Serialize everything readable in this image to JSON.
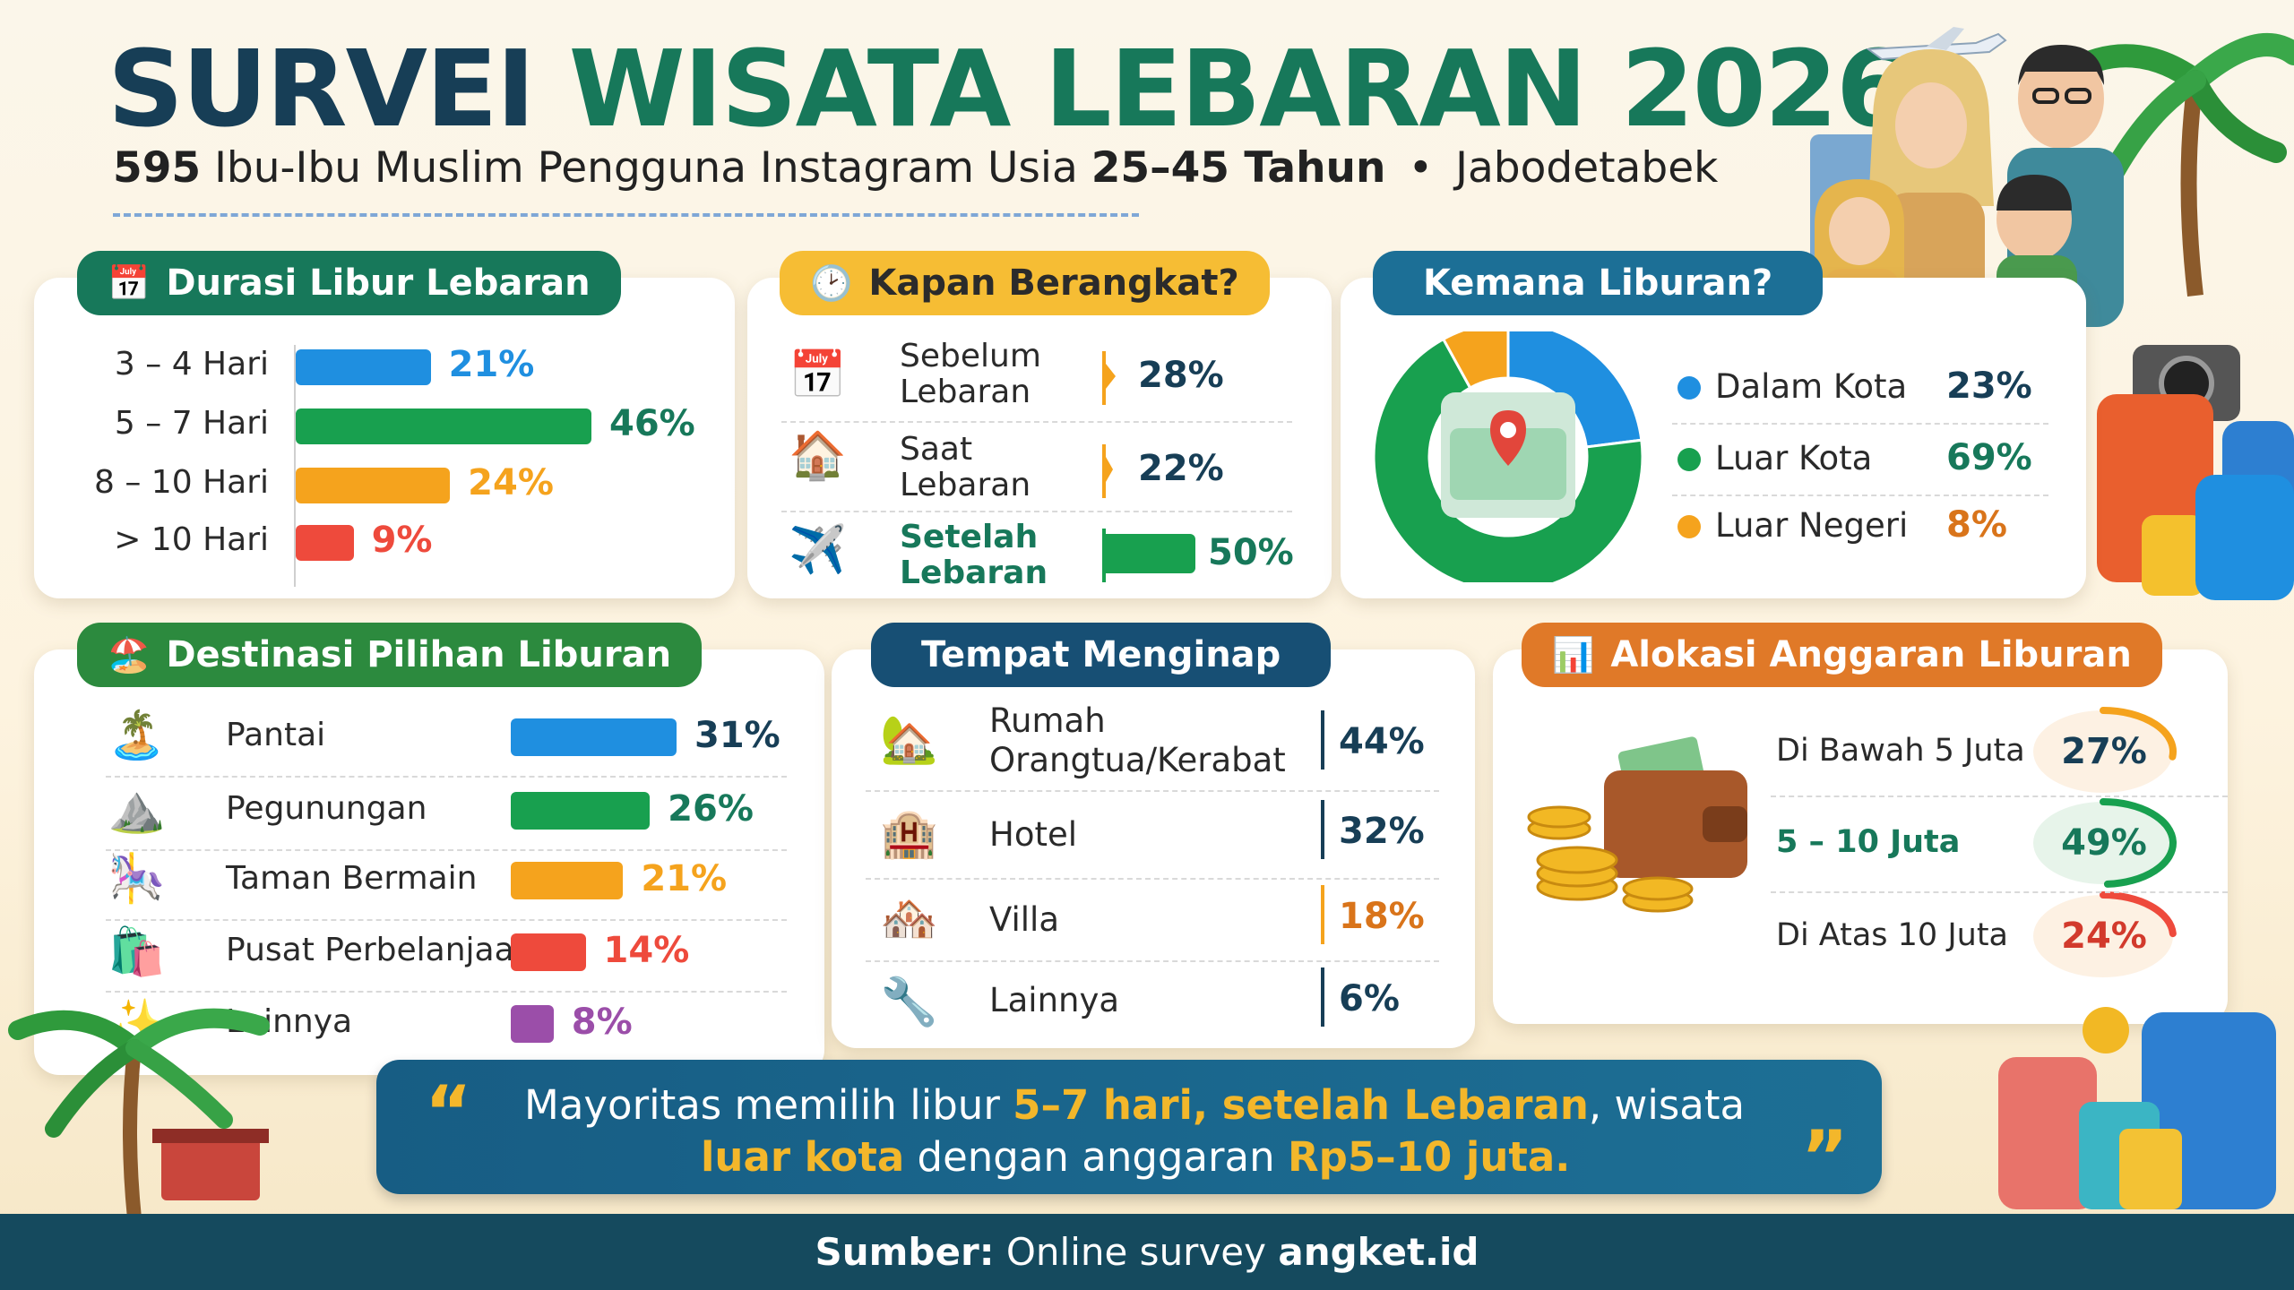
{
  "header": {
    "title_part1": "SURVEI",
    "title_part2": "WISATA LEBARAN 2026",
    "subtitle_count": "595",
    "subtitle_text": "Ibu-Ibu Muslim Pengguna Instagram Usia",
    "subtitle_age": "25–45 Tahun",
    "subtitle_bullet": "•",
    "subtitle_region": "Jabodetabek"
  },
  "colors": {
    "navy": "#173e56",
    "green": "#17785a",
    "blue": "#1f8fe0",
    "bar_green": "#18a04f",
    "orange": "#f5a31d",
    "red": "#ee4a3c",
    "purple": "#9b4ea9",
    "yellow": "#f3b72b"
  },
  "icons": {
    "durasi": "calendar-icon",
    "kapan": "clock-icon",
    "destinasi": "beach-chair-icon",
    "anggaran": "bar-chart-icon",
    "quote_open": "quote-open-icon",
    "quote_close": "quote-close-icon"
  },
  "durasi": {
    "title": "Durasi Libur Lebaran",
    "items": [
      {
        "label": "3 – 4 Hari",
        "pct": "21%"
      },
      {
        "label": "5 – 7 Hari",
        "pct": "46%"
      },
      {
        "label": "8 – 10 Hari",
        "pct": "24%"
      },
      {
        "label": "> 10 Hari",
        "pct": "9%"
      }
    ]
  },
  "kapan": {
    "title": "Kapan Berangkat?",
    "items": [
      {
        "label_line1": "Sebelum",
        "label_line2": "Lebaran",
        "pct": "28%"
      },
      {
        "label_line1": "Saat",
        "label_line2": "Lebaran",
        "pct": "22%"
      },
      {
        "label_line1": "Setelah",
        "label_line2": "Lebaran",
        "pct": "50%"
      }
    ]
  },
  "kemana": {
    "title": "Kemana Liburan?",
    "items": [
      {
        "label": "Dalam Kota",
        "pct": "23%"
      },
      {
        "label": "Luar Kota",
        "pct": "69%"
      },
      {
        "label": "Luar Negeri",
        "pct": "8%"
      }
    ]
  },
  "destinasi": {
    "title": "Destinasi Pilihan Liburan",
    "items": [
      {
        "label": "Pantai",
        "pct": "31%"
      },
      {
        "label": "Pegunungan",
        "pct": "26%"
      },
      {
        "label": "Taman Bermain",
        "pct": "21%"
      },
      {
        "label": "Pusat Perbelanjaan",
        "pct": "14%"
      },
      {
        "label": "Lainnya",
        "pct": "8%"
      }
    ]
  },
  "menginap": {
    "title": "Tempat Menginap",
    "items": [
      {
        "label_line1": "Rumah",
        "label_line2": "Orangtua/Kerabat",
        "pct": "44%"
      },
      {
        "label_line1": "Hotel",
        "label_line2": "",
        "pct": "32%"
      },
      {
        "label_line1": "Villa",
        "label_line2": "",
        "pct": "18%"
      },
      {
        "label_line1": "Lainnya",
        "label_line2": "",
        "pct": "6%"
      }
    ]
  },
  "anggaran": {
    "title": "Alokasi Anggaran Liburan",
    "items": [
      {
        "label": "Di Bawah 5 Juta",
        "pct": "27%"
      },
      {
        "label": "5 – 10 Juta",
        "pct": "49%"
      },
      {
        "label": "Di Atas 10 Juta",
        "pct": "24%"
      }
    ]
  },
  "quote": {
    "line1_a": "Mayoritas memilih libur",
    "line1_b": "5–7 hari, setelah Lebaran",
    "line1_c": ", wisata",
    "line2_a": "luar kota",
    "line2_b": "dengan anggaran",
    "line2_c": "Rp5–10 juta."
  },
  "footer": {
    "label": "Sumber:",
    "text": "Online survey",
    "brand": "angket.id"
  },
  "chart_data": [
    {
      "type": "bar",
      "title": "Durasi Libur Lebaran",
      "categories": [
        "3 – 4 Hari",
        "5 – 7 Hari",
        "8 – 10 Hari",
        "> 10 Hari"
      ],
      "values": [
        21,
        46,
        24,
        9
      ],
      "colors": [
        "#1f8fe0",
        "#18a04f",
        "#f5a31d",
        "#ee4a3c"
      ]
    },
    {
      "type": "bar",
      "title": "Kapan Berangkat?",
      "categories": [
        "Sebelum Lebaran",
        "Saat Lebaran",
        "Setelah Lebaran"
      ],
      "values": [
        28,
        22,
        50
      ]
    },
    {
      "type": "pie",
      "title": "Kemana Liburan?",
      "categories": [
        "Dalam Kota",
        "Luar Kota",
        "Luar Negeri"
      ],
      "values": [
        23,
        69,
        8
      ],
      "colors": [
        "#1f8fe0",
        "#18a04f",
        "#f5a31d"
      ]
    },
    {
      "type": "bar",
      "title": "Destinasi Pilihan Liburan",
      "categories": [
        "Pantai",
        "Pegunungan",
        "Taman Bermain",
        "Pusat Perbelanjaan",
        "Lainnya"
      ],
      "values": [
        31,
        26,
        21,
        14,
        8
      ],
      "colors": [
        "#1f8fe0",
        "#18a04f",
        "#f5a31d",
        "#ee4a3c",
        "#9b4ea9"
      ]
    },
    {
      "type": "table",
      "title": "Tempat Menginap",
      "categories": [
        "Rumah Orangtua/Kerabat",
        "Hotel",
        "Villa",
        "Lainnya"
      ],
      "values": [
        44,
        32,
        18,
        6
      ]
    },
    {
      "type": "pie",
      "title": "Alokasi Anggaran Liburan",
      "categories": [
        "Di Bawah 5 Juta",
        "5 – 10 Juta",
        "Di Atas 10 Juta"
      ],
      "values": [
        27,
        49,
        24
      ],
      "colors": [
        "#f5a31d",
        "#18a04f",
        "#ee4a3c"
      ]
    }
  ]
}
